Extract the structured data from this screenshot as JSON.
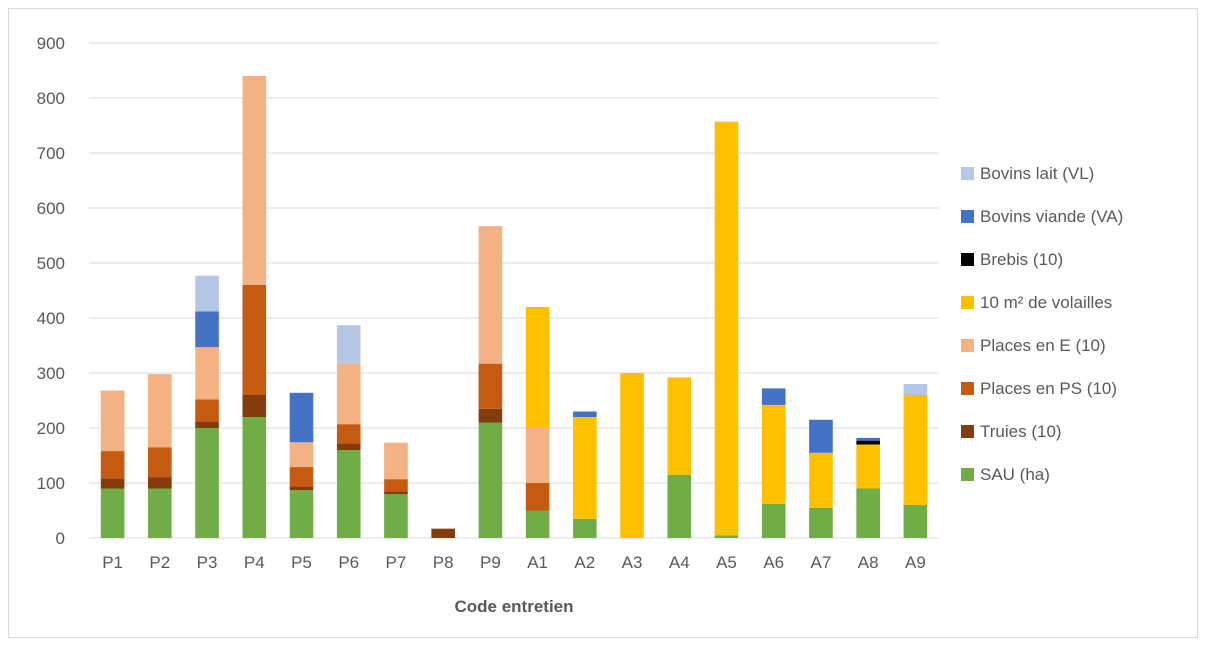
{
  "chart_data": {
    "type": "bar",
    "stacked": true,
    "title": "",
    "xlabel": "Code entretien",
    "ylabel": "",
    "ylim": [
      0,
      900
    ],
    "yticks": [
      0,
      100,
      200,
      300,
      400,
      500,
      600,
      700,
      800,
      900
    ],
    "grid": true,
    "legend_position": "right",
    "categories": [
      "P1",
      "P2",
      "P3",
      "P4",
      "P5",
      "P6",
      "P7",
      "P8",
      "P9",
      "A1",
      "A2",
      "A3",
      "A4",
      "A5",
      "A6",
      "A7",
      "A8",
      "A9"
    ],
    "series": [
      {
        "name": "SAU (ha)",
        "color": "#70ad47",
        "values": [
          90,
          90,
          200,
          220,
          87,
          160,
          80,
          0,
          210,
          50,
          35,
          0,
          115,
          5,
          62,
          55,
          90,
          60
        ]
      },
      {
        "name": "Truies (10)",
        "color": "#843c0c",
        "values": [
          18,
          20,
          12,
          40,
          7,
          12,
          5,
          17,
          25,
          0,
          0,
          0,
          0,
          0,
          0,
          0,
          0,
          0
        ]
      },
      {
        "name": "Places en PS (10)",
        "color": "#c55a11",
        "values": [
          50,
          55,
          40,
          200,
          35,
          35,
          22,
          0,
          82,
          50,
          0,
          0,
          0,
          0,
          0,
          0,
          0,
          0
        ]
      },
      {
        "name": "Places en E (10)",
        "color": "#f4b183",
        "values": [
          110,
          133,
          95,
          380,
          45,
          110,
          66,
          0,
          250,
          100,
          0,
          0,
          0,
          0,
          0,
          0,
          0,
          0
        ]
      },
      {
        "name": "10 m² de volailles",
        "color": "#ffc000",
        "values": [
          0,
          0,
          0,
          0,
          0,
          0,
          0,
          0,
          0,
          220,
          185,
          300,
          177,
          752,
          180,
          100,
          80,
          200
        ]
      },
      {
        "name": "Brebis (10)",
        "color": "#000000",
        "values": [
          0,
          0,
          0,
          0,
          0,
          0,
          0,
          0,
          0,
          0,
          0,
          0,
          0,
          0,
          0,
          0,
          7,
          0
        ]
      },
      {
        "name": "Bovins viande (VA)",
        "color": "#4472c4",
        "values": [
          0,
          0,
          65,
          0,
          90,
          0,
          0,
          0,
          0,
          0,
          10,
          0,
          0,
          0,
          30,
          60,
          5,
          0
        ]
      },
      {
        "name": "Bovins lait (VL)",
        "color": "#b4c7e7",
        "values": [
          0,
          0,
          65,
          0,
          0,
          70,
          0,
          0,
          0,
          0,
          0,
          0,
          0,
          0,
          0,
          0,
          0,
          20
        ]
      }
    ]
  }
}
